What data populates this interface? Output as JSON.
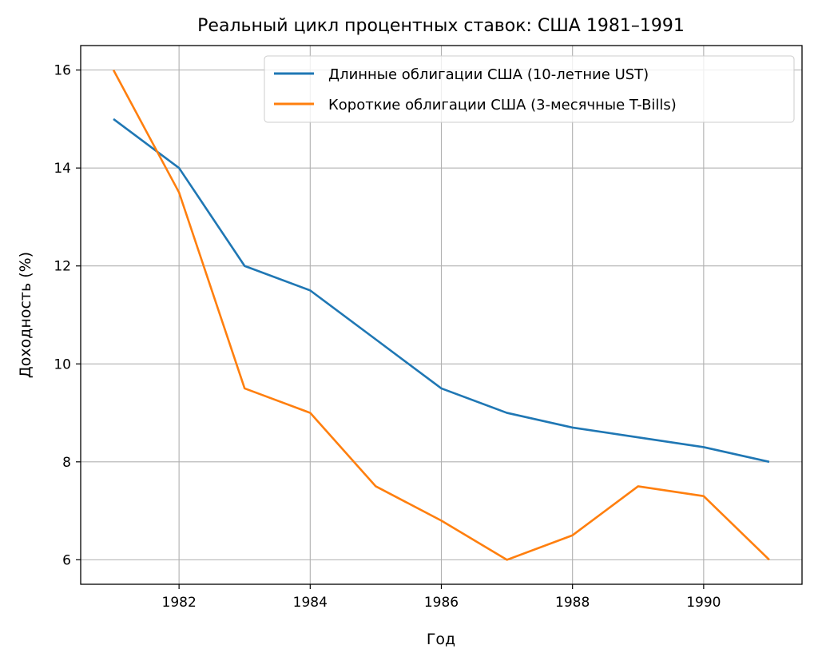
{
  "chart_data": {
    "type": "line",
    "title": "Реальный цикл процентных ставок: США 1981–1991",
    "xlabel": "Год",
    "ylabel": "Доходность (%)",
    "x": [
      1981,
      1982,
      1983,
      1984,
      1985,
      1986,
      1987,
      1988,
      1989,
      1990,
      1991
    ],
    "xlim": [
      1980.5,
      1991.5
    ],
    "ylim": [
      5.5,
      16.5
    ],
    "xticks": [
      "1982",
      "1984",
      "1986",
      "1988",
      "1990"
    ],
    "xtick_values": [
      1982,
      1984,
      1986,
      1988,
      1990
    ],
    "yticks": [
      "6",
      "8",
      "10",
      "12",
      "14",
      "16"
    ],
    "ytick_values": [
      6,
      8,
      10,
      12,
      14,
      16
    ],
    "grid": true,
    "legend_position": "top-right",
    "series": [
      {
        "name": "Длинные облигации США (10-летние UST)",
        "color": "#1f77b4",
        "values": [
          15.0,
          14.0,
          12.0,
          11.5,
          10.5,
          9.5,
          9.0,
          8.7,
          8.5,
          8.3,
          8.0
        ]
      },
      {
        "name": "Короткие облигации США (3-месячные T-Bills)",
        "color": "#ff7f0e",
        "values": [
          16.0,
          13.5,
          9.5,
          9.0,
          7.5,
          6.8,
          6.0,
          6.5,
          7.5,
          7.3,
          6.0
        ]
      }
    ]
  }
}
